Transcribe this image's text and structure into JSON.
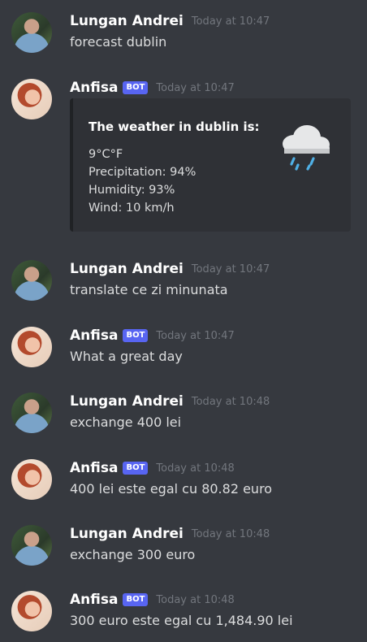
{
  "messages": [
    {
      "author": "Lungan Andrei",
      "time": "Today at 10:47",
      "text": "forecast dublin",
      "avatar": "andrei"
    },
    {
      "author": "Anfisa",
      "badge": "BOT",
      "time": "Today at 10:47",
      "avatar": "anfisa",
      "embed": {
        "title": "The weather in dublin is:",
        "lines": [
          "9°C°F",
          "Precipitation: 94%",
          "Humidity: 93%",
          "Wind: 10 km/h"
        ],
        "icon": "rain-cloud-icon"
      }
    },
    {
      "author": "Lungan Andrei",
      "time": "Today at 10:47",
      "text": "translate ce zi minunata",
      "avatar": "andrei"
    },
    {
      "author": "Anfisa",
      "badge": "BOT",
      "time": "Today at 10:47",
      "text": "What a great day",
      "avatar": "anfisa"
    },
    {
      "author": "Lungan Andrei",
      "time": "Today at 10:48",
      "text": "exchange 400 lei",
      "avatar": "andrei"
    },
    {
      "author": "Anfisa",
      "badge": "BOT",
      "time": "Today at 10:48",
      "text": "400 lei este egal cu 80.82 euro",
      "avatar": "anfisa"
    },
    {
      "author": "Lungan Andrei",
      "time": "Today at 10:48",
      "text": "exchange 300 euro",
      "avatar": "andrei"
    },
    {
      "author": "Anfisa",
      "badge": "BOT",
      "time": "Today at 10:48",
      "text": "300 euro este egal cu 1,484.90 lei",
      "avatar": "anfisa"
    }
  ],
  "colors": {
    "background": "#36393f",
    "embed": "#2f3136",
    "bot_badge": "#5865f2",
    "timestamp": "#72767d"
  }
}
